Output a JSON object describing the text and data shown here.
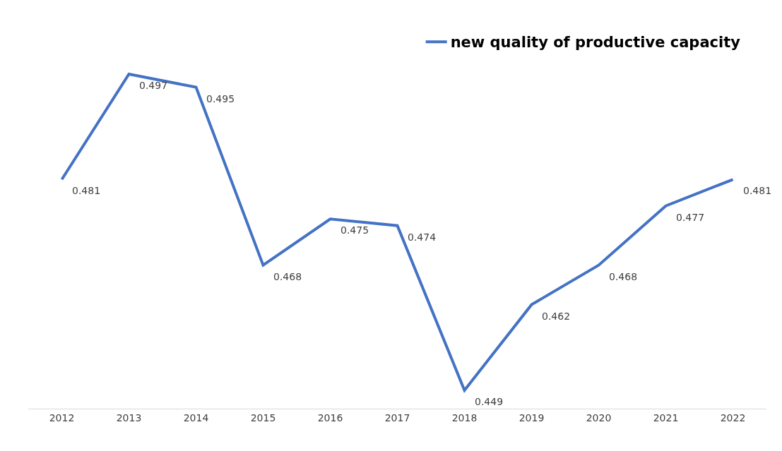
{
  "chart_data": {
    "type": "line",
    "categories": [
      "2012",
      "2013",
      "2014",
      "2015",
      "2016",
      "2017",
      "2018",
      "2019",
      "2020",
      "2021",
      "2022"
    ],
    "series": [
      {
        "name": "new quality of productive capacity",
        "color": "#4472c4",
        "values": [
          0.481,
          0.497,
          0.495,
          0.468,
          0.475,
          0.474,
          0.449,
          0.462,
          0.468,
          0.477,
          0.481
        ]
      }
    ],
    "data_labels": true,
    "grid": false,
    "legend": "top right",
    "marker": "none",
    "line_style": "solid"
  }
}
